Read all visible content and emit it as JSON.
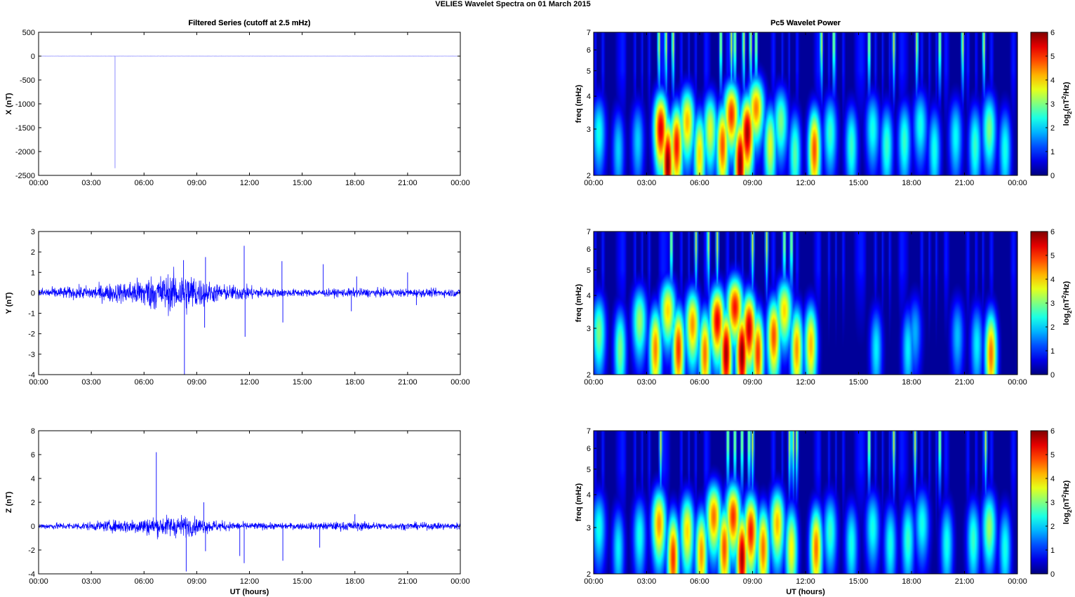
{
  "figure": {
    "title": "VELIES Wavelet Spectra on 01 March     2015",
    "left_title": "Filtered Series (cutoff at 2.5 mHz)",
    "right_title": "Pc5 Wavelet Power"
  },
  "chart_data": [
    {
      "type": "line",
      "title": "Filtered Series (cutoff at 2.5 mHz)",
      "xlabel": "",
      "ylabel": "X (nT)",
      "xlim": [
        0,
        24
      ],
      "ylim": [
        -2500,
        500
      ],
      "xticks": [
        "00:00",
        "03:00",
        "06:00",
        "09:00",
        "12:00",
        "15:00",
        "18:00",
        "21:00",
        "00:00"
      ],
      "yticks": [
        500,
        0,
        -500,
        -1000,
        -1500,
        -2000,
        -2500
      ],
      "series": [
        {
          "color": "#8080ff",
          "noise_amp": 1.5,
          "spikes": [
            [
              4.35,
              -2350
            ],
            [
              4.3,
              8
            ]
          ]
        }
      ]
    },
    {
      "type": "line",
      "title": "",
      "xlabel": "",
      "ylabel": "Y (nT)",
      "xlim": [
        0,
        24
      ],
      "ylim": [
        -4,
        3
      ],
      "xticks": [
        "00:00",
        "03:00",
        "06:00",
        "09:00",
        "12:00",
        "15:00",
        "18:00",
        "21:00",
        "00:00"
      ],
      "yticks": [
        3,
        2,
        1,
        0,
        -1,
        -2,
        -3,
        -4
      ],
      "series": [
        {
          "color": "#0000ff",
          "envelope": [
            [
              0,
              0.25
            ],
            [
              2,
              0.3
            ],
            [
              3.5,
              0.4
            ],
            [
              5,
              0.55
            ],
            [
              6,
              0.8
            ],
            [
              7.5,
              0.95
            ],
            [
              8.5,
              1.05
            ],
            [
              9.5,
              0.6
            ],
            [
              10.5,
              0.4
            ],
            [
              12,
              0.35
            ],
            [
              13.5,
              0.2
            ],
            [
              16,
              0.18
            ],
            [
              18,
              0.22
            ],
            [
              20,
              0.2
            ],
            [
              22,
              0.2
            ],
            [
              24,
              0.2
            ]
          ],
          "spikes": [
            [
              8.3,
              -4.0
            ],
            [
              8.25,
              1.6
            ],
            [
              9.5,
              1.75
            ],
            [
              9.45,
              -1.7
            ],
            [
              11.7,
              2.3
            ],
            [
              11.75,
              -2.15
            ],
            [
              13.9,
              -1.45
            ],
            [
              13.85,
              1.55
            ],
            [
              16.2,
              1.4
            ],
            [
              17.8,
              -0.9
            ],
            [
              18.1,
              0.8
            ],
            [
              21,
              1.0
            ],
            [
              21.5,
              -0.6
            ]
          ]
        }
      ]
    },
    {
      "type": "line",
      "title": "",
      "xlabel": "UT (hours)",
      "ylabel": "Z (nT)",
      "xlim": [
        0,
        24
      ],
      "ylim": [
        -4,
        8
      ],
      "xticks": [
        "00:00",
        "03:00",
        "06:00",
        "09:00",
        "12:00",
        "15:00",
        "18:00",
        "21:00",
        "00:00"
      ],
      "yticks": [
        8,
        6,
        4,
        2,
        0,
        -2,
        -4
      ],
      "series": [
        {
          "color": "#0000ff",
          "envelope": [
            [
              0,
              0.25
            ],
            [
              3,
              0.35
            ],
            [
              5,
              0.6
            ],
            [
              6.5,
              0.8
            ],
            [
              8,
              0.95
            ],
            [
              9.5,
              0.6
            ],
            [
              11,
              0.35
            ],
            [
              14,
              0.25
            ],
            [
              18,
              0.4
            ],
            [
              20,
              0.3
            ],
            [
              24,
              0.3
            ]
          ],
          "spikes": [
            [
              6.7,
              6.2
            ],
            [
              8.4,
              -3.8
            ],
            [
              9.4,
              2.0
            ],
            [
              9.5,
              -2.1
            ],
            [
              11.45,
              -2.5
            ],
            [
              11.7,
              -3.1
            ],
            [
              13.9,
              -2.9
            ],
            [
              16,
              -1.8
            ],
            [
              18,
              1.0
            ]
          ]
        }
      ]
    },
    {
      "type": "heatmap",
      "title": "Pc5 Wavelet Power",
      "xlabel": "",
      "ylabel": "freq (mHz)",
      "colorbar_label": "log2(nT^2/Hz)",
      "xlim": [
        0,
        24
      ],
      "ylim": [
        2,
        7
      ],
      "xticks": [
        "00:00",
        "03:00",
        "06:00",
        "09:00",
        "12:00",
        "15:00",
        "18:00",
        "21:00",
        "00:00"
      ],
      "yticks": [
        2,
        3,
        4,
        5,
        6,
        7
      ],
      "clim": [
        0,
        6
      ],
      "cticks": [
        0,
        1,
        2,
        3,
        4,
        5,
        6
      ],
      "blobs": [
        [
          0.3,
          2.9,
          2.4
        ],
        [
          1.4,
          2.5,
          2.0
        ],
        [
          2.5,
          2.7,
          2.0
        ],
        [
          3.8,
          3.0,
          5.5
        ],
        [
          4.2,
          2.2,
          6.0
        ],
        [
          4.7,
          2.6,
          5.2
        ],
        [
          5.3,
          3.2,
          4.2
        ],
        [
          6.0,
          2.4,
          4.0
        ],
        [
          6.6,
          3.0,
          3.6
        ],
        [
          7.3,
          2.6,
          4.8
        ],
        [
          7.8,
          3.4,
          5.0
        ],
        [
          8.3,
          2.2,
          6.0
        ],
        [
          8.7,
          2.9,
          5.8
        ],
        [
          9.2,
          3.6,
          4.5
        ],
        [
          10.0,
          2.6,
          3.6
        ],
        [
          10.6,
          3.2,
          3.0
        ],
        [
          11.4,
          2.4,
          2.8
        ],
        [
          12.5,
          2.5,
          4.8
        ],
        [
          13.4,
          2.9,
          2.6
        ],
        [
          14.6,
          2.6,
          2.6
        ],
        [
          15.8,
          3.0,
          2.4
        ],
        [
          16.6,
          2.6,
          2.6
        ],
        [
          17.6,
          2.7,
          2.6
        ],
        [
          18.5,
          3.1,
          2.4
        ],
        [
          19.3,
          2.5,
          2.4
        ],
        [
          20.5,
          2.8,
          2.3
        ],
        [
          21.6,
          2.6,
          2.6
        ],
        [
          22.4,
          3.0,
          3.0
        ],
        [
          23.3,
          2.5,
          2.4
        ]
      ],
      "streaks": [
        3.7,
        4.1,
        4.5,
        7.2,
        7.8,
        8.0,
        8.5,
        8.9,
        9.2,
        12.9,
        13.6,
        15.6,
        17.0,
        18.3,
        19.6,
        20.9,
        22.1
      ]
    },
    {
      "type": "heatmap",
      "title": "",
      "xlabel": "",
      "ylabel": "freq (mHz)",
      "colorbar_label": "log2(nT^2/Hz)",
      "xlim": [
        0,
        24
      ],
      "ylim": [
        2,
        7
      ],
      "xticks": [
        "00:00",
        "03:00",
        "06:00",
        "09:00",
        "12:00",
        "15:00",
        "18:00",
        "21:00",
        "00:00"
      ],
      "yticks": [
        2,
        3,
        4,
        5,
        6,
        7
      ],
      "clim": [
        0,
        6
      ],
      "cticks": [
        0,
        1,
        2,
        3,
        4,
        5,
        6
      ],
      "blobs": [
        [
          0.3,
          2.9,
          3.0
        ],
        [
          1.5,
          2.5,
          3.0
        ],
        [
          2.6,
          3.2,
          3.2
        ],
        [
          3.5,
          2.5,
          4.5
        ],
        [
          4.2,
          3.5,
          4.0
        ],
        [
          4.8,
          2.5,
          5.0
        ],
        [
          5.6,
          3.1,
          4.4
        ],
        [
          6.3,
          2.4,
          4.6
        ],
        [
          7.0,
          3.2,
          5.4
        ],
        [
          7.5,
          2.4,
          5.8
        ],
        [
          8.0,
          3.6,
          5.2
        ],
        [
          8.4,
          2.4,
          6.0
        ],
        [
          8.8,
          3.0,
          5.6
        ],
        [
          9.3,
          2.4,
          5.0
        ],
        [
          10.2,
          2.8,
          4.8
        ],
        [
          10.8,
          3.5,
          4.0
        ],
        [
          11.5,
          2.5,
          4.4
        ],
        [
          12.3,
          2.6,
          4.2
        ],
        [
          16.0,
          2.5,
          2.2
        ],
        [
          17.8,
          2.5,
          2.2
        ],
        [
          18.2,
          2.9,
          1.8
        ],
        [
          20.6,
          2.8,
          1.9
        ],
        [
          21.7,
          2.6,
          2.2
        ],
        [
          22.5,
          2.4,
          4.6
        ]
      ],
      "streaks": [
        4.4,
        5.8,
        6.5,
        7.0,
        9.0,
        9.8,
        10.8,
        11.2
      ]
    },
    {
      "type": "heatmap",
      "title": "",
      "xlabel": "UT (hours)",
      "ylabel": "freq (mHz)",
      "colorbar_label": "log2(nT^2/Hz)",
      "xlim": [
        0,
        24
      ],
      "ylim": [
        2,
        7
      ],
      "xticks": [
        "00:00",
        "03:00",
        "06:00",
        "09:00",
        "12:00",
        "15:00",
        "18:00",
        "21:00",
        "00:00"
      ],
      "yticks": [
        2,
        3,
        4,
        5,
        6,
        7
      ],
      "clim": [
        0,
        6
      ],
      "cticks": [
        0,
        1,
        2,
        3,
        4,
        5,
        6
      ],
      "blobs": [
        [
          0.3,
          3.0,
          2.4
        ],
        [
          1.4,
          2.5,
          2.2
        ],
        [
          2.6,
          2.8,
          2.4
        ],
        [
          3.7,
          3.1,
          4.4
        ],
        [
          4.5,
          2.3,
          5.0
        ],
        [
          5.3,
          2.9,
          4.0
        ],
        [
          6.1,
          2.4,
          4.4
        ],
        [
          6.8,
          3.3,
          4.6
        ],
        [
          7.4,
          2.5,
          4.8
        ],
        [
          7.9,
          3.3,
          5.0
        ],
        [
          8.4,
          2.3,
          5.8
        ],
        [
          8.9,
          2.9,
          5.2
        ],
        [
          9.6,
          2.5,
          4.6
        ],
        [
          10.4,
          3.1,
          4.2
        ],
        [
          11.2,
          2.5,
          3.8
        ],
        [
          12.6,
          2.5,
          4.6
        ],
        [
          13.4,
          2.9,
          2.6
        ],
        [
          14.6,
          2.6,
          2.4
        ],
        [
          15.8,
          3.0,
          2.4
        ],
        [
          16.8,
          2.6,
          2.4
        ],
        [
          17.8,
          2.7,
          2.6
        ],
        [
          18.6,
          3.1,
          2.4
        ],
        [
          20.0,
          2.6,
          2.4
        ],
        [
          21.5,
          2.7,
          2.6
        ],
        [
          22.4,
          3.0,
          3.2
        ],
        [
          23.3,
          2.5,
          2.4
        ]
      ],
      "streaks": [
        3.8,
        7.6,
        8.0,
        8.4,
        8.8,
        9.0,
        11.1,
        11.3,
        11.5,
        15.6,
        17.0,
        18.2,
        19.6,
        22.2
      ]
    }
  ]
}
